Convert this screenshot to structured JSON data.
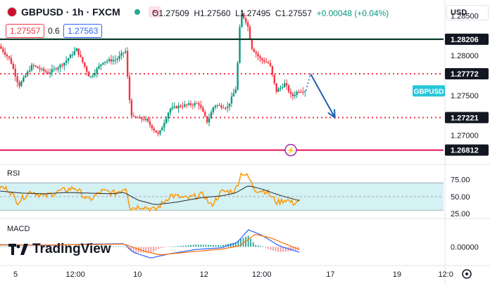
{
  "header": {
    "symbol": "GBPUSD · 1h · FXCM",
    "ohlc": {
      "open": "O1.27509",
      "high": "H1.27560",
      "low": "L1.27495",
      "close": "C1.27557"
    },
    "change": "+0.00048 (+0.04%)",
    "sell_price": "1.27557",
    "spread": "0.6",
    "buy_price": "1.27563",
    "currency": "USD"
  },
  "logo": {
    "text": "TradingView"
  },
  "colors": {
    "up": "#089981",
    "down": "#f23645",
    "level": "#f23645",
    "support": "#e91e63",
    "resistance": "#0c3b2e",
    "arrow": "#1f5fae",
    "rsi": "#ff9800",
    "rsi_ma": "#2b2b2b",
    "rsi_band": "#d4f1f4",
    "macd": "#2962ff",
    "signal": "#ff6d00",
    "price_tag": "#26c6da"
  },
  "chart_data": [
    {
      "type": "candlestick",
      "panel": "price",
      "ylim": [
        1.2665,
        1.287
      ],
      "y_ticks": [
        1.27,
        1.275,
        1.28,
        1.285
      ],
      "y_tick_labels": [
        "1.27000",
        "1.27500",
        "1.28000",
        "1.28500"
      ],
      "x_ticks": [
        "5",
        "12:00",
        "10",
        "12",
        "12:00",
        "17",
        "19",
        "12:0"
      ],
      "x_tick_pos": [
        0.035,
        0.17,
        0.31,
        0.46,
        0.59,
        0.745,
        0.895,
        1.005
      ],
      "x_span": [
        0.0,
        0.69
      ],
      "levels": [
        {
          "label": "1.28206",
          "value": 1.28206,
          "style": "solid",
          "color": "#0c3b2e"
        },
        {
          "label": "1.27772",
          "value": 1.27772,
          "style": "dotted",
          "color": "#f23645"
        },
        {
          "label": "1.27221",
          "value": 1.27221,
          "style": "dotted",
          "color": "#f23645"
        },
        {
          "label": "1.26812",
          "value": 1.26812,
          "style": "solid",
          "color": "#e91e63"
        }
      ],
      "last_price_tag": "GBPUSD",
      "last_price_value": 1.27557,
      "anchors": [
        {
          "t": 0.0,
          "v": 1.2812
        },
        {
          "t": 0.025,
          "v": 1.2795
        },
        {
          "t": 0.045,
          "v": 1.2762
        },
        {
          "t": 0.075,
          "v": 1.2788
        },
        {
          "t": 0.11,
          "v": 1.2778
        },
        {
          "t": 0.145,
          "v": 1.279
        },
        {
          "t": 0.175,
          "v": 1.2808
        },
        {
          "t": 0.205,
          "v": 1.2772
        },
        {
          "t": 0.235,
          "v": 1.2793
        },
        {
          "t": 0.265,
          "v": 1.2795
        },
        {
          "t": 0.285,
          "v": 1.2807
        },
        {
          "t": 0.293,
          "v": 1.275
        },
        {
          "t": 0.3,
          "v": 1.2722
        },
        {
          "t": 0.33,
          "v": 1.272
        },
        {
          "t": 0.36,
          "v": 1.27
        },
        {
          "t": 0.385,
          "v": 1.2733
        },
        {
          "t": 0.41,
          "v": 1.2737
        },
        {
          "t": 0.45,
          "v": 1.274
        },
        {
          "t": 0.47,
          "v": 1.2716
        },
        {
          "t": 0.485,
          "v": 1.2738
        },
        {
          "t": 0.515,
          "v": 1.2735
        },
        {
          "t": 0.535,
          "v": 1.276
        },
        {
          "t": 0.545,
          "v": 1.2855
        },
        {
          "t": 0.56,
          "v": 1.284
        },
        {
          "t": 0.57,
          "v": 1.281
        },
        {
          "t": 0.59,
          "v": 1.2795
        },
        {
          "t": 0.61,
          "v": 1.279
        },
        {
          "t": 0.625,
          "v": 1.2755
        },
        {
          "t": 0.645,
          "v": 1.2765
        },
        {
          "t": 0.66,
          "v": 1.2748
        },
        {
          "t": 0.675,
          "v": 1.2756
        }
      ],
      "forecast": {
        "from": [
          0.7,
          1.27772
        ],
        "to": [
          0.755,
          1.27221
        ]
      }
    },
    {
      "type": "line",
      "panel": "rsi",
      "title": "RSI",
      "ylim": [
        20,
        95
      ],
      "y_ticks": [
        25,
        50,
        75
      ],
      "y_tick_labels": [
        "25.00",
        "50.00",
        "75.00"
      ],
      "band": [
        30,
        70
      ],
      "midline": 50,
      "x_span": [
        0.0,
        0.675
      ],
      "series": [
        {
          "role": "rsi",
          "anchors": [
            {
              "t": 0.0,
              "v": 64
            },
            {
              "t": 0.02,
              "v": 60
            },
            {
              "t": 0.04,
              "v": 42
            },
            {
              "t": 0.07,
              "v": 58
            },
            {
              "t": 0.1,
              "v": 50
            },
            {
              "t": 0.13,
              "v": 57
            },
            {
              "t": 0.17,
              "v": 63
            },
            {
              "t": 0.2,
              "v": 44
            },
            {
              "t": 0.23,
              "v": 58
            },
            {
              "t": 0.26,
              "v": 55
            },
            {
              "t": 0.285,
              "v": 64
            },
            {
              "t": 0.293,
              "v": 33
            },
            {
              "t": 0.32,
              "v": 36
            },
            {
              "t": 0.35,
              "v": 30
            },
            {
              "t": 0.385,
              "v": 52
            },
            {
              "t": 0.42,
              "v": 47
            },
            {
              "t": 0.46,
              "v": 53
            },
            {
              "t": 0.475,
              "v": 36
            },
            {
              "t": 0.5,
              "v": 57
            },
            {
              "t": 0.53,
              "v": 58
            },
            {
              "t": 0.545,
              "v": 86
            },
            {
              "t": 0.56,
              "v": 78
            },
            {
              "t": 0.575,
              "v": 60
            },
            {
              "t": 0.6,
              "v": 58
            },
            {
              "t": 0.625,
              "v": 41
            },
            {
              "t": 0.645,
              "v": 46
            },
            {
              "t": 0.66,
              "v": 40
            },
            {
              "t": 0.675,
              "v": 44
            }
          ]
        },
        {
          "role": "rsi_ma",
          "anchors": [
            {
              "t": 0.0,
              "v": 58
            },
            {
              "t": 0.05,
              "v": 55
            },
            {
              "t": 0.1,
              "v": 54
            },
            {
              "t": 0.15,
              "v": 56
            },
            {
              "t": 0.2,
              "v": 55
            },
            {
              "t": 0.25,
              "v": 54
            },
            {
              "t": 0.28,
              "v": 56
            },
            {
              "t": 0.31,
              "v": 45
            },
            {
              "t": 0.35,
              "v": 38
            },
            {
              "t": 0.4,
              "v": 42
            },
            {
              "t": 0.45,
              "v": 48
            },
            {
              "t": 0.5,
              "v": 51
            },
            {
              "t": 0.53,
              "v": 55
            },
            {
              "t": 0.56,
              "v": 66
            },
            {
              "t": 0.59,
              "v": 61
            },
            {
              "t": 0.63,
              "v": 52
            },
            {
              "t": 0.675,
              "v": 44
            }
          ]
        }
      ]
    },
    {
      "type": "line",
      "panel": "macd",
      "title": "MACD",
      "ylim": [
        -0.004,
        0.006
      ],
      "y_ticks": [
        0.0
      ],
      "y_tick_labels": [
        "0.00000"
      ],
      "x_span": [
        0.0,
        0.675
      ],
      "series": [
        {
          "role": "macd",
          "anchors": [
            {
              "t": 0.0,
              "v": 0.0005
            },
            {
              "t": 0.1,
              "v": 0.0003
            },
            {
              "t": 0.2,
              "v": 0.0006
            },
            {
              "t": 0.28,
              "v": 0.0007
            },
            {
              "t": 0.3,
              "v": -0.0012
            },
            {
              "t": 0.34,
              "v": -0.0025
            },
            {
              "t": 0.38,
              "v": -0.0016
            },
            {
              "t": 0.44,
              "v": -0.0006
            },
            {
              "t": 0.5,
              "v": -0.0002
            },
            {
              "t": 0.535,
              "v": 0.001
            },
            {
              "t": 0.56,
              "v": 0.0038
            },
            {
              "t": 0.59,
              "v": 0.0026
            },
            {
              "t": 0.63,
              "v": 0.0002
            },
            {
              "t": 0.675,
              "v": -0.0012
            }
          ]
        },
        {
          "role": "signal",
          "anchors": [
            {
              "t": 0.0,
              "v": 0.0004
            },
            {
              "t": 0.1,
              "v": 0.0004
            },
            {
              "t": 0.2,
              "v": 0.0005
            },
            {
              "t": 0.28,
              "v": 0.0006
            },
            {
              "t": 0.32,
              "v": -0.0008
            },
            {
              "t": 0.36,
              "v": -0.0018
            },
            {
              "t": 0.42,
              "v": -0.0012
            },
            {
              "t": 0.5,
              "v": -0.0005
            },
            {
              "t": 0.54,
              "v": 0.0002
            },
            {
              "t": 0.575,
              "v": 0.0028
            },
            {
              "t": 0.61,
              "v": 0.002
            },
            {
              "t": 0.675,
              "v": -0.0006
            }
          ]
        }
      ]
    }
  ]
}
